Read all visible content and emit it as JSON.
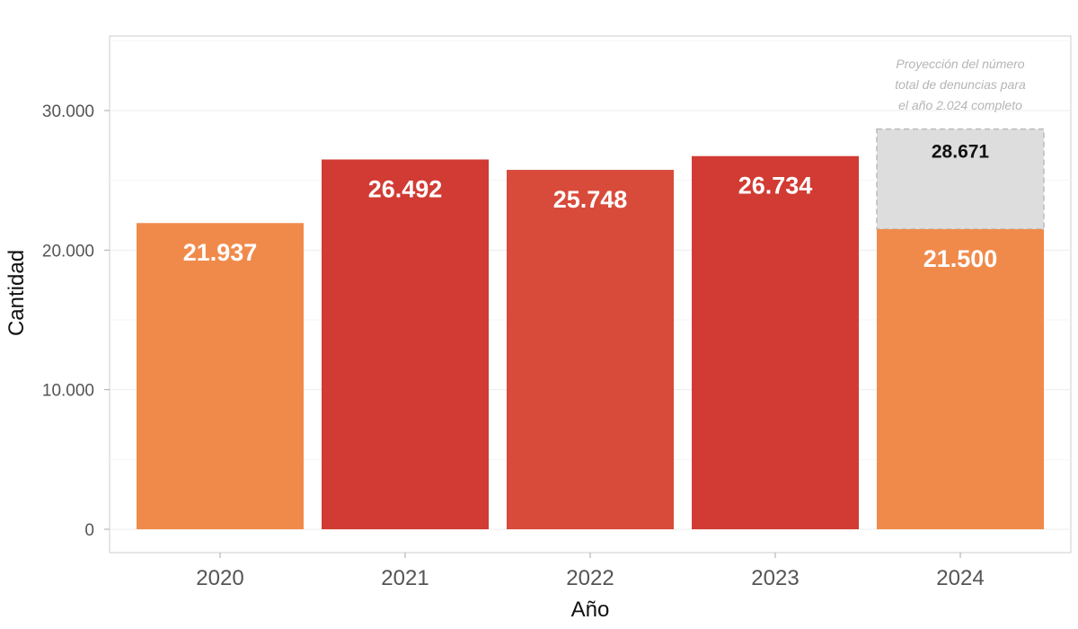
{
  "chart_data": {
    "type": "bar",
    "xlabel": "Año",
    "ylabel": "Cantidad",
    "ylim": [
      0,
      35000
    ],
    "yticks": [
      0,
      10000,
      20000,
      30000
    ],
    "ytick_labels": [
      "0",
      "10.000",
      "20.000",
      "30.000"
    ],
    "grid": true,
    "categories": [
      "2020",
      "2021",
      "2022",
      "2023",
      "2024"
    ],
    "values": [
      21937,
      26492,
      25748,
      26734,
      21500
    ],
    "value_labels": [
      "21.937",
      "26.492",
      "25.748",
      "26.734",
      "21.500"
    ],
    "colors": [
      "#f08a4b",
      "#d13b33",
      "#d84b3a",
      "#d13b33",
      "#f08a4b"
    ],
    "projection": {
      "category": "2024",
      "value": 28671,
      "value_label": "28.671",
      "color": "#dddddd",
      "note": [
        "Proyección del número",
        "total de denuncias para",
        "el año 2.024 completo"
      ]
    }
  }
}
